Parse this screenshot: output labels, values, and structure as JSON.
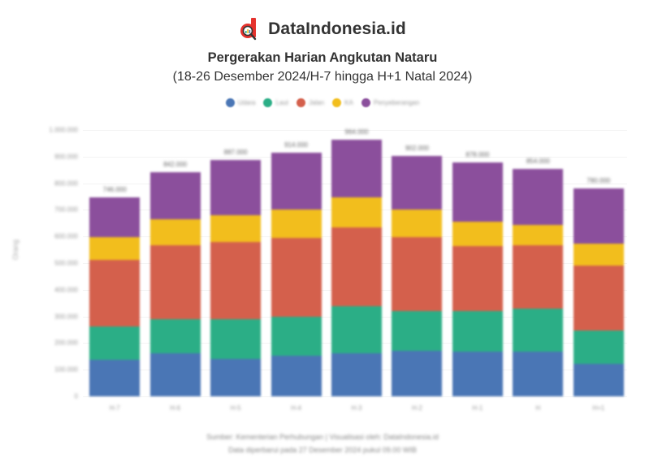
{
  "brand": {
    "name": "DataIndonesia.id",
    "logo_icon": "magnifier-d-logo",
    "logo_color": "#E5322D"
  },
  "header": {
    "title": "Pergerakan Harian Angkutan Nataru",
    "subtitle": "(18-26 Desember 2024/H-7 hingga H+1 Natal 2024)"
  },
  "footer": {
    "line1": "Sumber: Kementerian Perhubungan | Visualisasi oleh: DataIndonesia.id",
    "line2": "Data diperbarui pada 27 Desember 2024 pukul 09.00 WIB"
  },
  "chart_data": {
    "type": "bar",
    "stacked": true,
    "title": "Pergerakan Harian Angkutan Nataru",
    "subtitle": "(18-26 Desember 2024/H-7 hingga H+1 Natal 2024)",
    "xlabel": "",
    "ylabel": "Orang",
    "ylim": [
      0,
      1000000
    ],
    "yticks": [
      "0",
      "100.000",
      "200.000",
      "300.000",
      "400.000",
      "500.000",
      "600.000",
      "700.000",
      "800.000",
      "900.000",
      "1.000.000"
    ],
    "grid": true,
    "legend_position": "top",
    "categories": [
      "H-7",
      "H-6",
      "H-5",
      "H-4",
      "H-3",
      "H-2",
      "H-1",
      "H",
      "H+1"
    ],
    "series": [
      {
        "name": "Udara",
        "color": "#4A76B5",
        "values": [
          137000,
          162000,
          140000,
          152000,
          162000,
          171000,
          168000,
          168000,
          122000
        ]
      },
      {
        "name": "Laut",
        "color": "#2BAE86",
        "values": [
          125000,
          128000,
          149000,
          146000,
          177000,
          149000,
          152000,
          162000,
          125000
        ]
      },
      {
        "name": "Jalan",
        "color": "#D4604C",
        "values": [
          250000,
          277000,
          290000,
          296000,
          296000,
          277000,
          244000,
          238000,
          244000
        ]
      },
      {
        "name": "KA",
        "color": "#F2BE1D",
        "values": [
          85000,
          98000,
          101000,
          107000,
          113000,
          104000,
          91000,
          76000,
          82000
        ]
      },
      {
        "name": "Penyeberangan",
        "color": "#8B4F9C",
        "values": [
          149000,
          177000,
          207000,
          213000,
          216000,
          201000,
          223000,
          210000,
          207000
        ]
      }
    ],
    "totals": [
      "746.000",
      "842.000",
      "887.000",
      "914.000",
      "964.000",
      "902.000",
      "878.000",
      "854.000",
      "780.000"
    ]
  }
}
